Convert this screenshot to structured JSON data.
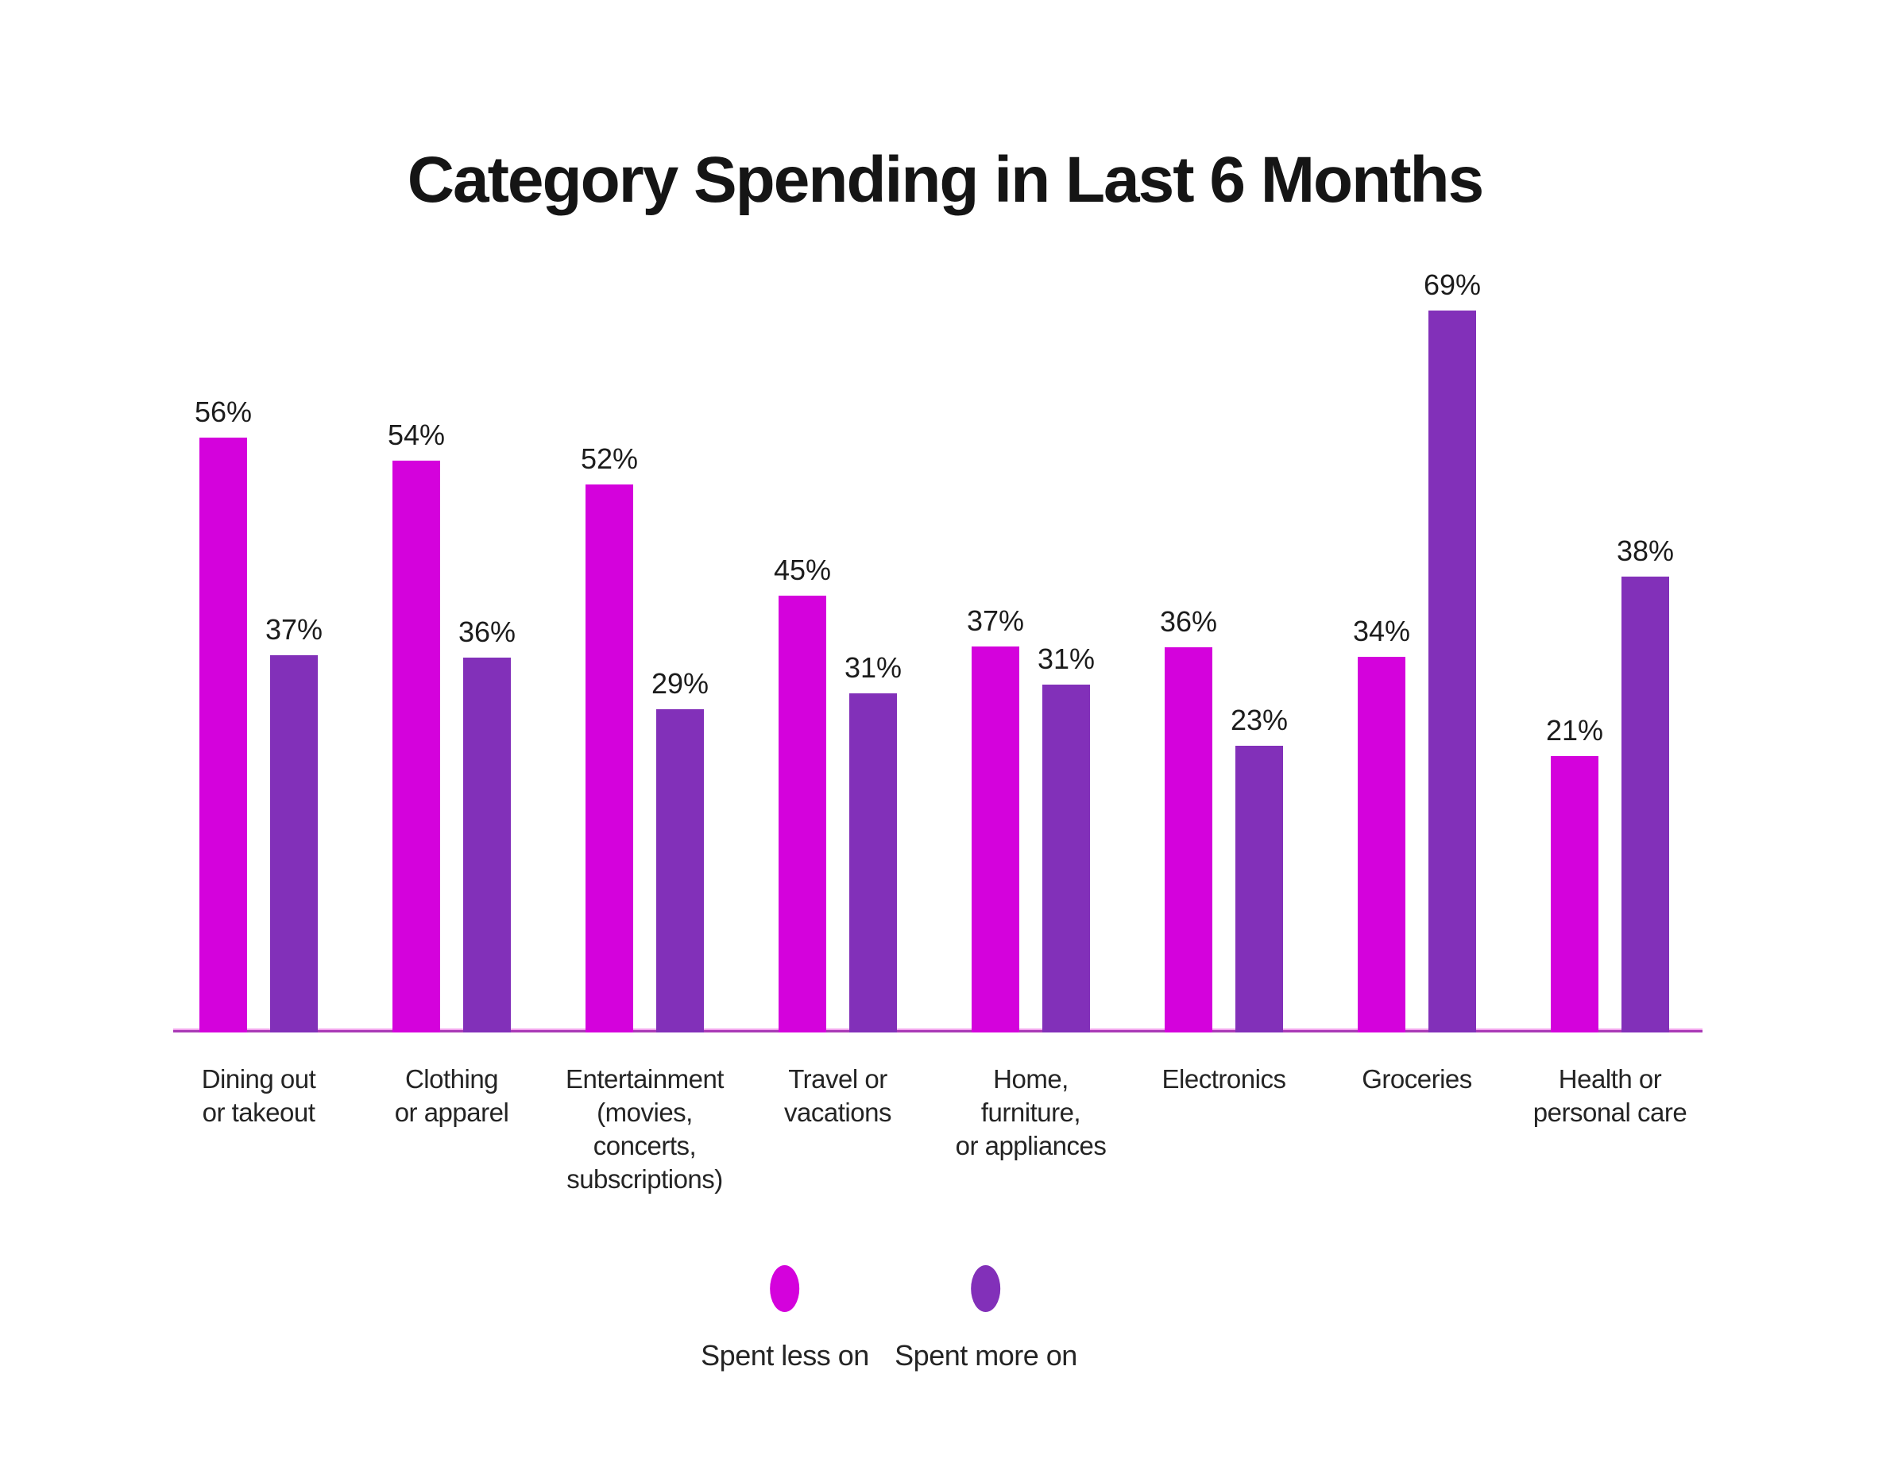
{
  "title": "Category Spending in Last 6 Months",
  "legend": {
    "items": [
      {
        "label": "Spent less on",
        "color": "#d402dc"
      },
      {
        "label": "Spent more on",
        "color": "#8230b9"
      }
    ]
  },
  "chart_data": {
    "type": "bar",
    "title": "Category Spending in Last 6 Months",
    "categories": [
      "Dining out or takeout",
      "Clothing or apparel",
      "Entertainment (movies, concerts, subscriptions)",
      "Travel or vacations",
      "Home, furniture, or appliances",
      "Electronics",
      "Groceries",
      "Health or personal care"
    ],
    "category_label_lines": [
      [
        "Dining out",
        "or takeout"
      ],
      [
        "Clothing",
        "or apparel"
      ],
      [
        "Entertainment",
        "(movies,",
        "concerts,",
        "subscriptions)"
      ],
      [
        "Travel or",
        "vacations"
      ],
      [
        "Home,",
        "furniture,",
        "or appliances"
      ],
      [
        "Electronics"
      ],
      [
        "Groceries"
      ],
      [
        "Health or",
        "personal care"
      ]
    ],
    "series": [
      {
        "name": "Spent less on",
        "color": "#d402dc",
        "values": [
          56,
          54,
          52,
          45,
          37,
          36,
          34,
          21
        ]
      },
      {
        "name": "Spent more on",
        "color": "#8230b9",
        "values": [
          37,
          36,
          29,
          31,
          31,
          23,
          69,
          38
        ]
      }
    ],
    "value_suffix": "%",
    "value_labels_shown": true,
    "xlabel": "",
    "ylabel": "",
    "axes": "baseline-only",
    "grid": false,
    "legend_position": "bottom"
  }
}
